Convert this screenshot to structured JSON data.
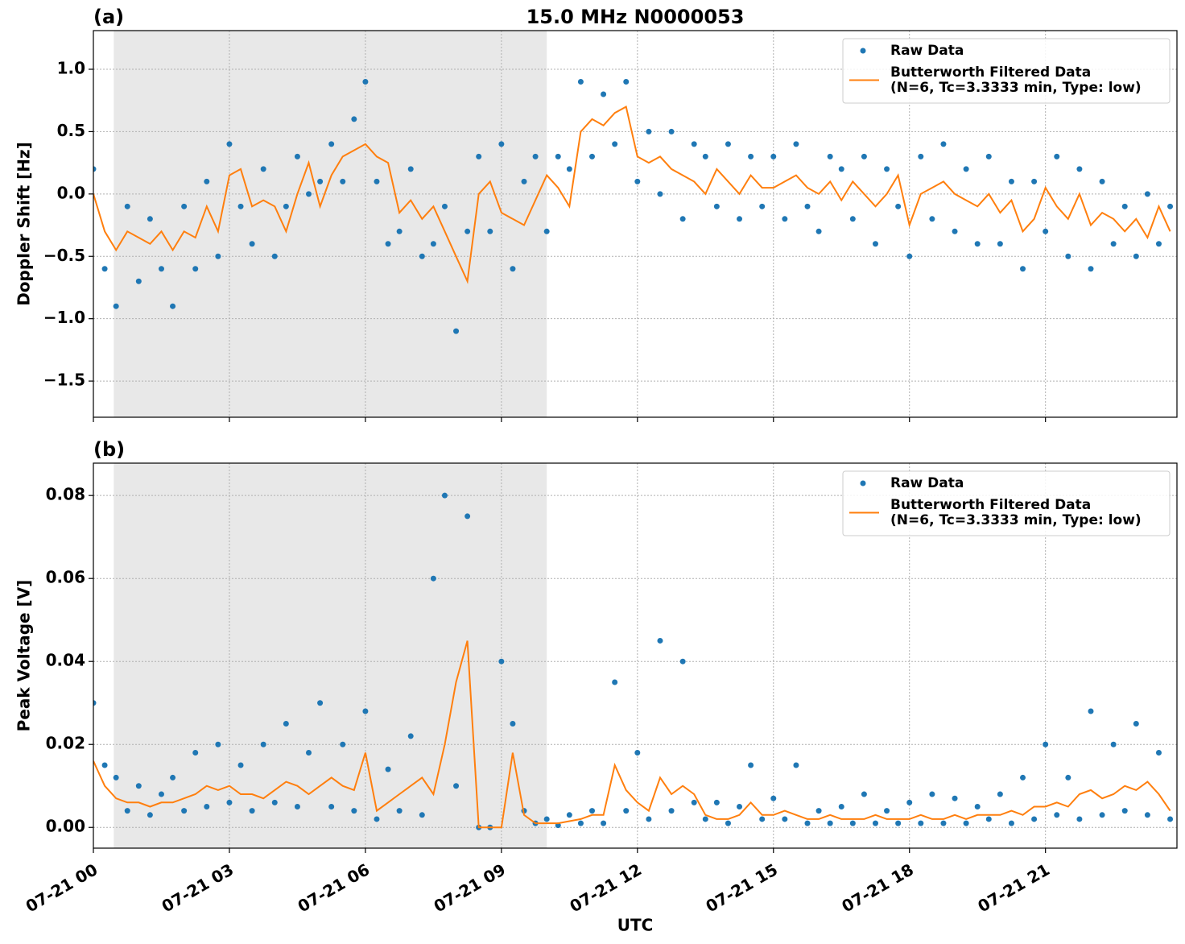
{
  "chart_data": [
    {
      "type": "scatter-line",
      "panel_label": "(a)",
      "title": "15.0 MHz N0000053",
      "y_label": "Doppler Shift [Hz]",
      "x": [
        0,
        0.25,
        0.5,
        0.75,
        1,
        1.25,
        1.5,
        1.75,
        2,
        2.25,
        2.5,
        2.75,
        3,
        3.25,
        3.5,
        3.75,
        4,
        4.25,
        4.5,
        4.75,
        5,
        5.25,
        5.5,
        5.75,
        6,
        6.25,
        6.5,
        6.75,
        7,
        7.25,
        7.5,
        7.75,
        8,
        8.25,
        8.5,
        8.75,
        9,
        9.25,
        9.5,
        9.75,
        10,
        10.25,
        10.5,
        10.75,
        11,
        11.25,
        11.5,
        11.75,
        12,
        12.25,
        12.5,
        12.75,
        13,
        13.25,
        13.5,
        13.75,
        14,
        14.25,
        14.5,
        14.75,
        15,
        15.25,
        15.5,
        15.75,
        16,
        16.25,
        16.5,
        16.75,
        17,
        17.25,
        17.5,
        17.75,
        18,
        18.25,
        18.5,
        18.75,
        19,
        19.25,
        19.5,
        19.75,
        20,
        20.25,
        20.5,
        20.75,
        21,
        21.25,
        21.5,
        21.75,
        22,
        22.25,
        22.5,
        22.75,
        23,
        23.25,
        23.5,
        23.75
      ],
      "series": [
        {
          "name": "Raw Data",
          "color": "#1f77b4",
          "style": "points",
          "values": [
            0.2,
            -0.6,
            -0.9,
            -0.1,
            -0.7,
            -0.2,
            -0.6,
            -0.9,
            -0.1,
            -0.6,
            0.1,
            -0.5,
            0.4,
            -0.1,
            -0.4,
            0.2,
            -0.5,
            -0.1,
            0.3,
            0.0,
            0.1,
            0.4,
            0.1,
            0.6,
            0.9,
            0.1,
            -0.4,
            -0.3,
            0.2,
            -0.5,
            -0.4,
            -0.1,
            -1.1,
            -0.3,
            0.3,
            -0.3,
            0.4,
            -0.6,
            0.1,
            0.3,
            -0.3,
            0.3,
            0.2,
            0.9,
            0.3,
            0.8,
            0.4,
            0.9,
            0.1,
            0.5,
            0.0,
            0.5,
            -0.2,
            0.4,
            0.3,
            -0.1,
            0.4,
            -0.2,
            0.3,
            -0.1,
            0.3,
            -0.2,
            0.4,
            -0.1,
            -0.3,
            0.3,
            0.2,
            -0.2,
            0.3,
            -0.4,
            0.2,
            -0.1,
            -0.5,
            0.3,
            -0.2,
            0.4,
            -0.3,
            0.2,
            -0.4,
            0.3,
            -0.4,
            0.1,
            -0.6,
            0.1,
            -0.3,
            0.3,
            -0.5,
            0.2,
            -0.6,
            0.1,
            -0.4,
            -0.1,
            -0.5,
            0.0,
            -0.4,
            -0.1
          ]
        },
        {
          "name": "Butterworth Filtered Data\n(N=6, Tc=3.3333 min, Type: low)",
          "color": "#ff7f0e",
          "style": "line",
          "values": [
            0.0,
            -0.3,
            -0.45,
            -0.3,
            -0.35,
            -0.4,
            -0.3,
            -0.45,
            -0.3,
            -0.35,
            -0.1,
            -0.3,
            0.15,
            0.2,
            -0.1,
            -0.05,
            -0.1,
            -0.3,
            0.0,
            0.25,
            -0.1,
            0.15,
            0.3,
            0.35,
            0.4,
            0.3,
            0.25,
            -0.15,
            -0.05,
            -0.2,
            -0.1,
            -0.3,
            -0.5,
            -0.7,
            0.0,
            0.1,
            -0.15,
            -0.2,
            -0.25,
            -0.05,
            0.15,
            0.05,
            -0.1,
            0.5,
            0.6,
            0.55,
            0.65,
            0.7,
            0.3,
            0.25,
            0.3,
            0.2,
            0.15,
            0.1,
            0.0,
            0.2,
            0.1,
            0.0,
            0.15,
            0.05,
            0.05,
            0.1,
            0.15,
            0.05,
            0.0,
            0.1,
            -0.05,
            0.1,
            0.0,
            -0.1,
            0.0,
            0.15,
            -0.25,
            0.0,
            0.05,
            0.1,
            0.0,
            -0.05,
            -0.1,
            0.0,
            -0.15,
            -0.05,
            -0.3,
            -0.2,
            0.05,
            -0.1,
            -0.2,
            0.0,
            -0.25,
            -0.15,
            -0.2,
            -0.3,
            -0.2,
            -0.35,
            -0.1,
            -0.3
          ]
        }
      ],
      "xlim": [
        0,
        23.9
      ],
      "xticks": [
        0,
        3,
        6,
        9,
        12,
        15,
        18,
        21
      ],
      "ylim": [
        -1.79,
        1.31
      ],
      "yticks": [
        {
          "value": -1.5,
          "label": "−1.5"
        },
        {
          "value": -1.0,
          "label": "−1.0"
        },
        {
          "value": -0.5,
          "label": "−0.5"
        },
        {
          "value": 0.0,
          "label": "0.0"
        },
        {
          "value": 0.5,
          "label": "0.5"
        },
        {
          "value": 1.0,
          "label": "1.0"
        }
      ],
      "shade": [
        0.45,
        10.0
      ],
      "grid": true,
      "legend": "upper right"
    },
    {
      "type": "scatter-line",
      "panel_label": "(b)",
      "y_label": "Peak Voltage [V]",
      "x_label": "UTC",
      "x": [
        0,
        0.25,
        0.5,
        0.75,
        1,
        1.25,
        1.5,
        1.75,
        2,
        2.25,
        2.5,
        2.75,
        3,
        3.25,
        3.5,
        3.75,
        4,
        4.25,
        4.5,
        4.75,
        5,
        5.25,
        5.5,
        5.75,
        6,
        6.25,
        6.5,
        6.75,
        7,
        7.25,
        7.5,
        7.75,
        8,
        8.25,
        8.5,
        8.75,
        9,
        9.25,
        9.5,
        9.75,
        10,
        10.25,
        10.5,
        10.75,
        11,
        11.25,
        11.5,
        11.75,
        12,
        12.25,
        12.5,
        12.75,
        13,
        13.25,
        13.5,
        13.75,
        14,
        14.25,
        14.5,
        14.75,
        15,
        15.25,
        15.5,
        15.75,
        16,
        16.25,
        16.5,
        16.75,
        17,
        17.25,
        17.5,
        17.75,
        18,
        18.25,
        18.5,
        18.75,
        19,
        19.25,
        19.5,
        19.75,
        20,
        20.25,
        20.5,
        20.75,
        21,
        21.25,
        21.5,
        21.75,
        22,
        22.25,
        22.5,
        22.75,
        23,
        23.25,
        23.5,
        23.75
      ],
      "series": [
        {
          "name": "Raw Data",
          "color": "#1f77b4",
          "style": "points",
          "values": [
            0.03,
            0.015,
            0.012,
            0.004,
            0.01,
            0.003,
            0.008,
            0.012,
            0.004,
            0.018,
            0.005,
            0.02,
            0.006,
            0.015,
            0.004,
            0.02,
            0.006,
            0.025,
            0.005,
            0.018,
            0.03,
            0.005,
            0.02,
            0.004,
            0.028,
            0.002,
            0.014,
            0.004,
            0.022,
            0.003,
            0.06,
            0.08,
            0.01,
            0.075,
            0.0,
            0.0,
            0.04,
            0.025,
            0.004,
            0.001,
            0.002,
            0.0005,
            0.003,
            0.001,
            0.004,
            0.001,
            0.035,
            0.004,
            0.018,
            0.002,
            0.045,
            0.004,
            0.04,
            0.006,
            0.002,
            0.006,
            0.001,
            0.005,
            0.015,
            0.002,
            0.007,
            0.002,
            0.015,
            0.001,
            0.004,
            0.001,
            0.005,
            0.001,
            0.008,
            0.001,
            0.004,
            0.001,
            0.006,
            0.001,
            0.008,
            0.001,
            0.007,
            0.001,
            0.005,
            0.002,
            0.008,
            0.001,
            0.012,
            0.002,
            0.02,
            0.003,
            0.012,
            0.002,
            0.028,
            0.003,
            0.02,
            0.004,
            0.025,
            0.003,
            0.018,
            0.002
          ]
        },
        {
          "name": "Butterworth Filtered Data\n(N=6, Tc=3.3333 min, Type: low)",
          "color": "#ff7f0e",
          "style": "line",
          "values": [
            0.016,
            0.01,
            0.007,
            0.006,
            0.006,
            0.005,
            0.006,
            0.006,
            0.007,
            0.008,
            0.01,
            0.009,
            0.01,
            0.008,
            0.008,
            0.007,
            0.009,
            0.011,
            0.01,
            0.008,
            0.01,
            0.012,
            0.01,
            0.009,
            0.018,
            0.004,
            0.006,
            0.008,
            0.01,
            0.012,
            0.008,
            0.02,
            0.035,
            0.045,
            0.0,
            0.0,
            0.0,
            0.018,
            0.003,
            0.001,
            0.001,
            0.001,
            0.0015,
            0.002,
            0.003,
            0.003,
            0.015,
            0.009,
            0.006,
            0.004,
            0.012,
            0.008,
            0.01,
            0.008,
            0.003,
            0.002,
            0.002,
            0.003,
            0.006,
            0.003,
            0.003,
            0.004,
            0.003,
            0.002,
            0.002,
            0.003,
            0.002,
            0.002,
            0.002,
            0.003,
            0.002,
            0.002,
            0.002,
            0.003,
            0.002,
            0.002,
            0.003,
            0.002,
            0.003,
            0.003,
            0.003,
            0.004,
            0.003,
            0.005,
            0.005,
            0.006,
            0.005,
            0.008,
            0.009,
            0.007,
            0.008,
            0.01,
            0.009,
            0.011,
            0.008,
            0.004
          ]
        }
      ],
      "xlim": [
        0,
        23.9
      ],
      "xticks": [
        {
          "value": 0,
          "label": "07-21 00"
        },
        {
          "value": 3,
          "label": "07-21 03"
        },
        {
          "value": 6,
          "label": "07-21 06"
        },
        {
          "value": 9,
          "label": "07-21 09"
        },
        {
          "value": 12,
          "label": "07-21 12"
        },
        {
          "value": 15,
          "label": "07-21 15"
        },
        {
          "value": 18,
          "label": "07-21 18"
        },
        {
          "value": 21,
          "label": "07-21 21"
        }
      ],
      "ylim": [
        -0.005,
        0.0878
      ],
      "yticks": [
        {
          "value": 0.0,
          "label": "0.00"
        },
        {
          "value": 0.02,
          "label": "0.02"
        },
        {
          "value": 0.04,
          "label": "0.04"
        },
        {
          "value": 0.06,
          "label": "0.06"
        },
        {
          "value": 0.08,
          "label": "0.08"
        }
      ],
      "shade": [
        0.45,
        10.0
      ],
      "grid": true,
      "legend": "upper right"
    }
  ]
}
